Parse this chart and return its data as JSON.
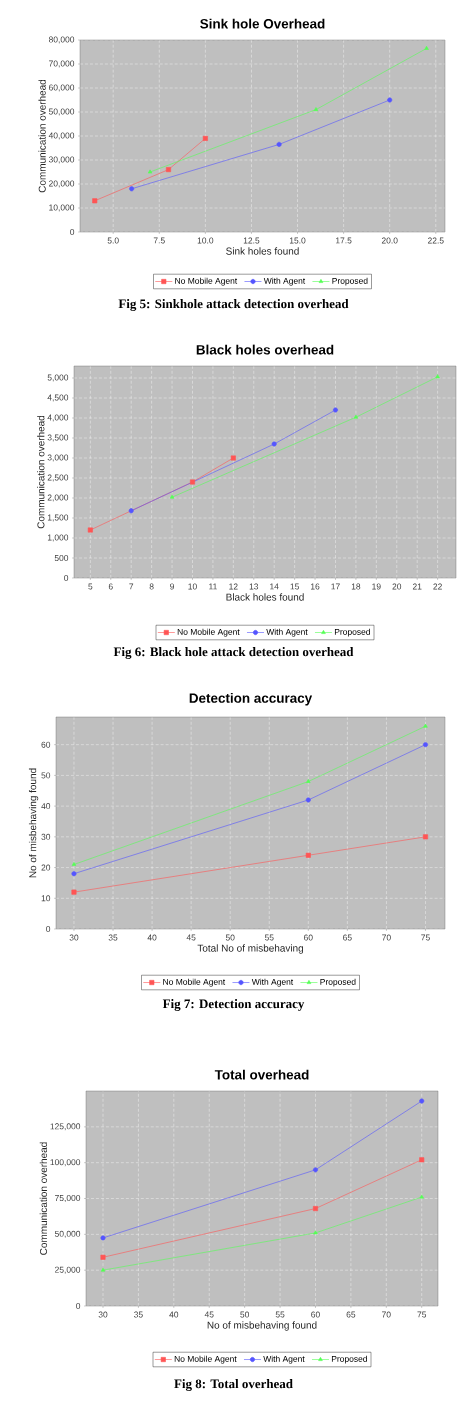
{
  "chart_data": [
    {
      "type": "line",
      "title": "Sink hole Overhead",
      "xlabel": "Sink holes found",
      "ylabel": "Communication overhead",
      "annotations": [
        "Fig 5: Sinkhole attack detection overhead"
      ],
      "grid": true,
      "legend": "bottom",
      "line_style": "solid",
      "xlim": [
        3.2,
        23
      ],
      "ylim": [
        0,
        80000
      ],
      "xticks": [
        {
          "value": 5,
          "label": "5.0"
        },
        {
          "value": 7.5,
          "label": "7.5"
        },
        {
          "value": 10,
          "label": "10.0"
        },
        {
          "value": 12.5,
          "label": "12.5"
        },
        {
          "value": 15,
          "label": "15.0"
        },
        {
          "value": 17.5,
          "label": "17.5"
        },
        {
          "value": 20,
          "label": "20.0"
        },
        {
          "value": 22.5,
          "label": "22.5"
        }
      ],
      "yticks": [
        0,
        {
          "value": 10000,
          "label": "10,000"
        },
        {
          "value": 20000,
          "label": "20,000"
        },
        {
          "value": 30000,
          "label": "30,000"
        },
        {
          "value": 40000,
          "label": "40,000"
        },
        {
          "value": 50000,
          "label": "50,000"
        },
        {
          "value": 60000,
          "label": "60,000"
        },
        {
          "value": 70000,
          "label": "70,000"
        },
        {
          "value": 80000,
          "label": "80,000"
        }
      ],
      "series": [
        {
          "name": "No Mobile Agent",
          "color": "#ff5555",
          "marker": "square",
          "x": [
            4,
            8,
            10
          ],
          "values": [
            13000,
            26000,
            39000
          ]
        },
        {
          "name": "With Agent",
          "color": "#5555ff",
          "marker": "circle",
          "x": [
            6,
            14,
            20
          ],
          "values": [
            18000,
            36500,
            55000
          ]
        },
        {
          "name": "Proposed",
          "color": "#55ff55",
          "marker": "triangle",
          "x": [
            7,
            16,
            22
          ],
          "values": [
            25000,
            51000,
            76500
          ]
        }
      ]
    },
    {
      "type": "line",
      "title": "Black holes overhead",
      "xlabel": "Black holes found",
      "ylabel": "Communication overhead",
      "annotations": [
        "Fig 6: Black hole attack detection overhead"
      ],
      "grid": true,
      "legend": "bottom",
      "line_style": "solid",
      "xlim": [
        4.2,
        22.9
      ],
      "ylim": [
        0,
        5300
      ],
      "xticks": [
        5,
        6,
        7,
        8,
        9,
        10,
        11,
        12,
        13,
        14,
        15,
        16,
        17,
        18,
        19,
        20,
        21,
        22
      ],
      "yticks": [
        0,
        500,
        {
          "value": 1000,
          "label": "1,000"
        },
        {
          "value": 1500,
          "label": "1,500"
        },
        {
          "value": 2000,
          "label": "2,000"
        },
        {
          "value": 2500,
          "label": "2,500"
        },
        {
          "value": 3000,
          "label": "3,000"
        },
        {
          "value": 3500,
          "label": "3,500"
        },
        {
          "value": 4000,
          "label": "4,000"
        },
        {
          "value": 4500,
          "label": "4,500"
        },
        {
          "value": 5000,
          "label": "5,000"
        }
      ],
      "series": [
        {
          "name": "No Mobile Agent",
          "color": "#ff5555",
          "marker": "square",
          "x": [
            5,
            10,
            12
          ],
          "values": [
            1200,
            2400,
            3000
          ]
        },
        {
          "name": "With Agent",
          "color": "#5555ff",
          "marker": "circle",
          "x": [
            7,
            14,
            17
          ],
          "values": [
            1680,
            3350,
            4200
          ]
        },
        {
          "name": "Proposed",
          "color": "#55ff55",
          "marker": "triangle",
          "x": [
            9,
            18,
            22
          ],
          "values": [
            2020,
            4020,
            5030
          ]
        }
      ]
    },
    {
      "type": "line",
      "title": "Detection accuracy",
      "xlabel": "Total No of misbehaving",
      "ylabel": "No of misbehaving found",
      "annotations": [
        "Fig 7: Detection accuracy"
      ],
      "grid": true,
      "legend": "bottom",
      "line_style": "solid",
      "xlim": [
        27.7,
        77.5
      ],
      "ylim": [
        0,
        69
      ],
      "xticks": [
        30,
        35,
        40,
        45,
        50,
        55,
        60,
        65,
        70,
        75
      ],
      "yticks": [
        0,
        10,
        20,
        30,
        40,
        50,
        60
      ],
      "series": [
        {
          "name": "No Mobile Agent",
          "color": "#ff5555",
          "marker": "square",
          "x": [
            30,
            60,
            75
          ],
          "values": [
            12,
            24,
            30
          ]
        },
        {
          "name": "With Agent",
          "color": "#5555ff",
          "marker": "circle",
          "x": [
            30,
            60,
            75
          ],
          "values": [
            18,
            42,
            60
          ]
        },
        {
          "name": "Proposed",
          "color": "#55ff55",
          "marker": "triangle",
          "x": [
            30,
            60,
            75
          ],
          "values": [
            21,
            48,
            66
          ]
        }
      ]
    },
    {
      "type": "line",
      "title": "Total overhead",
      "xlabel": "No of misbehaving found",
      "ylabel": "Communication overhead",
      "annotations": [
        "Fig 8: Total overhead"
      ],
      "grid": true,
      "legend": "bottom",
      "line_style": "solid",
      "xlim": [
        27.6,
        77.3
      ],
      "ylim": [
        0,
        150000
      ],
      "xticks": [
        30,
        35,
        40,
        45,
        50,
        55,
        60,
        65,
        70,
        75
      ],
      "yticks": [
        0,
        {
          "value": 25000,
          "label": "25,000"
        },
        {
          "value": 50000,
          "label": "50,000"
        },
        {
          "value": 75000,
          "label": "75,000"
        },
        {
          "value": 100000,
          "label": "100,000"
        },
        {
          "value": 125000,
          "label": "125,000"
        }
      ],
      "series": [
        {
          "name": "No Mobile Agent",
          "color": "#ff5555",
          "marker": "square",
          "x": [
            30,
            60,
            75
          ],
          "values": [
            34000,
            68000,
            102000
          ]
        },
        {
          "name": "With Agent",
          "color": "#5555ff",
          "marker": "circle",
          "x": [
            30,
            60,
            75
          ],
          "values": [
            47500,
            95000,
            143000
          ]
        },
        {
          "name": "Proposed",
          "color": "#55ff55",
          "marker": "triangle",
          "x": [
            30,
            60,
            75
          ],
          "values": [
            25000,
            51000,
            76000
          ]
        }
      ]
    }
  ]
}
